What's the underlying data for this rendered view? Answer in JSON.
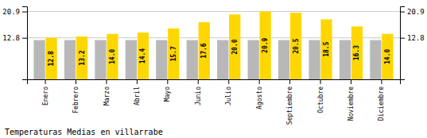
{
  "chart_data": {
    "type": "bar",
    "title": "Temperaturas Medias en villarrabe",
    "categories": [
      "Enero",
      "Febrero",
      "Marzo",
      "Abril",
      "Mayo",
      "Junio",
      "Julio",
      "Agosto",
      "Septiembre",
      "Octubre",
      "Noviembre",
      "Diciembre"
    ],
    "series": [
      {
        "color": "#B8B8B8",
        "values": [
          12.1,
          12.1,
          12.1,
          12.1,
          12.1,
          12.1,
          12.1,
          12.1,
          12.1,
          12.1,
          12.1,
          12.1
        ]
      },
      {
        "color": "#FFD700",
        "values": [
          12.8,
          13.2,
          14.0,
          14.4,
          15.7,
          17.6,
          20.0,
          20.9,
          20.5,
          18.5,
          16.3,
          14.0
        ],
        "value_labels": [
          "12.8",
          "13.2",
          "14.0",
          "14.4",
          "15.7",
          "17.6",
          "20.0",
          "20.9",
          "20.5",
          "18.5",
          "16.3",
          "14.0"
        ],
        "data_labels": true
      }
    ],
    "ylim": [
      0,
      22.5
    ],
    "yticks": [
      12.8,
      20.9
    ],
    "y2lim": [
      0,
      22.5
    ],
    "y2ticks": [
      12.8,
      20.9
    ],
    "grid": true
  }
}
